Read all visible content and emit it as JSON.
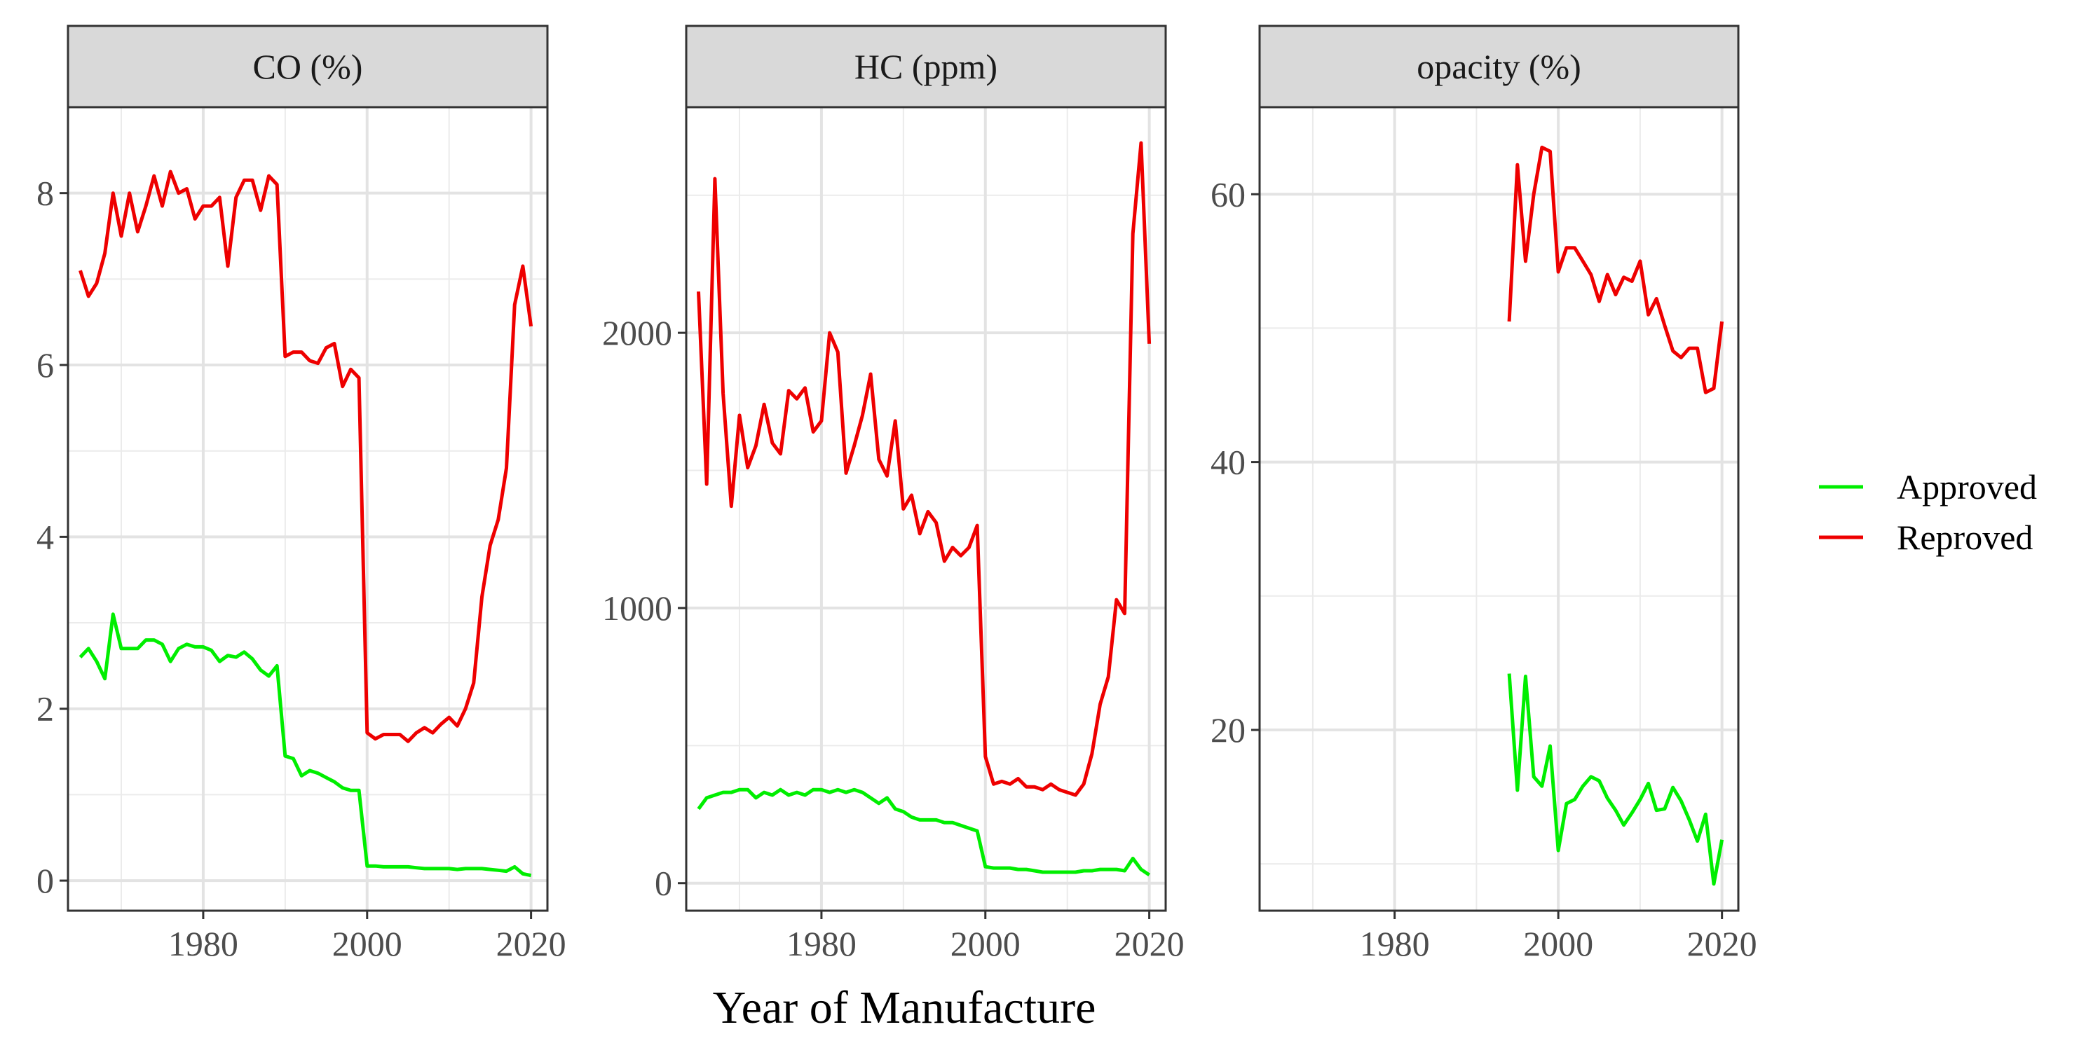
{
  "chart_data": {
    "type": "line",
    "xlabel": "Year of Manufacture",
    "x_ticks": [
      1980,
      2000,
      2020
    ],
    "xlim": [
      1963.5,
      2022
    ],
    "legend": {
      "placement": "right",
      "entries": [
        {
          "name": "Approved",
          "color": "#00ee00"
        },
        {
          "name": "Reproved",
          "color": "#ee0000"
        }
      ]
    },
    "panels": [
      {
        "title": "CO (%)",
        "ylim": [
          -0.35,
          9.0
        ],
        "y_ticks": [
          0,
          2,
          4,
          6,
          8
        ],
        "y_minor": [
          1,
          3,
          5,
          7
        ],
        "series": [
          {
            "name": "Approved",
            "x": [
              1965,
              1966,
              1967,
              1968,
              1969,
              1970,
              1971,
              1972,
              1973,
              1974,
              1975,
              1976,
              1977,
              1978,
              1979,
              1980,
              1981,
              1982,
              1983,
              1984,
              1985,
              1986,
              1987,
              1988,
              1989,
              1990,
              1991,
              1992,
              1993,
              1994,
              1995,
              1996,
              1997,
              1998,
              1999,
              2000,
              2001,
              2002,
              2003,
              2004,
              2005,
              2006,
              2007,
              2008,
              2009,
              2010,
              2011,
              2012,
              2013,
              2014,
              2015,
              2016,
              2017,
              2018,
              2019,
              2020
            ],
            "y": [
              2.6,
              2.7,
              2.55,
              2.35,
              3.1,
              2.7,
              2.7,
              2.7,
              2.8,
              2.8,
              2.75,
              2.55,
              2.7,
              2.75,
              2.72,
              2.72,
              2.68,
              2.55,
              2.62,
              2.6,
              2.66,
              2.58,
              2.45,
              2.38,
              2.5,
              1.45,
              1.42,
              1.22,
              1.28,
              1.25,
              1.2,
              1.15,
              1.08,
              1.05,
              1.05,
              0.17,
              0.17,
              0.16,
              0.16,
              0.16,
              0.16,
              0.15,
              0.14,
              0.14,
              0.14,
              0.14,
              0.13,
              0.14,
              0.14,
              0.14,
              0.13,
              0.12,
              0.11,
              0.16,
              0.08,
              0.06
            ]
          },
          {
            "name": "Reproved",
            "x": [
              1965,
              1966,
              1967,
              1968,
              1969,
              1970,
              1971,
              1972,
              1973,
              1974,
              1975,
              1976,
              1977,
              1978,
              1979,
              1980,
              1981,
              1982,
              1983,
              1984,
              1985,
              1986,
              1987,
              1988,
              1989,
              1990,
              1991,
              1992,
              1993,
              1994,
              1995,
              1996,
              1997,
              1998,
              1999,
              2000,
              2001,
              2002,
              2003,
              2004,
              2005,
              2006,
              2007,
              2008,
              2009,
              2010,
              2011,
              2012,
              2013,
              2014,
              2015,
              2016,
              2017,
              2018,
              2019,
              2020
            ],
            "y": [
              7.1,
              6.8,
              6.95,
              7.3,
              8.0,
              7.5,
              8.0,
              7.55,
              7.85,
              8.2,
              7.85,
              8.25,
              8.0,
              8.05,
              7.7,
              7.85,
              7.85,
              7.95,
              7.15,
              7.95,
              8.15,
              8.15,
              7.8,
              8.2,
              8.1,
              6.1,
              6.15,
              6.15,
              6.05,
              6.02,
              6.2,
              6.25,
              5.75,
              5.95,
              5.85,
              1.72,
              1.65,
              1.7,
              1.7,
              1.7,
              1.62,
              1.72,
              1.78,
              1.72,
              1.82,
              1.9,
              1.8,
              2.0,
              2.3,
              3.3,
              3.9,
              4.2,
              4.8,
              6.7,
              7.15,
              6.45
            ]
          }
        ]
      },
      {
        "title": "HC (ppm)",
        "ylim": [
          -100,
          2820
        ],
        "y_ticks": [
          0,
          1000,
          2000
        ],
        "y_minor": [
          500,
          1500,
          2500
        ],
        "series": [
          {
            "name": "Approved",
            "x": [
              1965,
              1966,
              1967,
              1968,
              1969,
              1970,
              1971,
              1972,
              1973,
              1974,
              1975,
              1976,
              1977,
              1978,
              1979,
              1980,
              1981,
              1982,
              1983,
              1984,
              1985,
              1986,
              1987,
              1988,
              1989,
              1990,
              1991,
              1992,
              1993,
              1994,
              1995,
              1996,
              1997,
              1998,
              1999,
              2000,
              2001,
              2002,
              2003,
              2004,
              2005,
              2006,
              2007,
              2008,
              2009,
              2010,
              2011,
              2012,
              2013,
              2014,
              2015,
              2016,
              2017,
              2018,
              2019,
              2020
            ],
            "y": [
              270,
              310,
              320,
              330,
              330,
              340,
              340,
              310,
              330,
              320,
              340,
              320,
              330,
              320,
              340,
              340,
              330,
              340,
              330,
              340,
              330,
              310,
              290,
              310,
              270,
              260,
              240,
              230,
              230,
              230,
              220,
              220,
              210,
              200,
              190,
              60,
              55,
              55,
              55,
              50,
              50,
              45,
              40,
              40,
              40,
              40,
              40,
              45,
              45,
              50,
              50,
              50,
              45,
              90,
              50,
              30
            ]
          },
          {
            "name": "Reproved",
            "x": [
              1965,
              1966,
              1967,
              1968,
              1969,
              1970,
              1971,
              1972,
              1973,
              1974,
              1975,
              1976,
              1977,
              1978,
              1979,
              1980,
              1981,
              1982,
              1983,
              1984,
              1985,
              1986,
              1987,
              1988,
              1989,
              1990,
              1991,
              1992,
              1993,
              1994,
              1995,
              1996,
              1997,
              1998,
              1999,
              2000,
              2001,
              2002,
              2003,
              2004,
              2005,
              2006,
              2007,
              2008,
              2009,
              2010,
              2011,
              2012,
              2013,
              2014,
              2015,
              2016,
              2017,
              2018,
              2019,
              2020
            ],
            "y": [
              2150,
              1450,
              2560,
              1780,
              1370,
              1700,
              1510,
              1590,
              1740,
              1600,
              1560,
              1790,
              1760,
              1800,
              1640,
              1680,
              2000,
              1930,
              1490,
              1590,
              1700,
              1850,
              1540,
              1480,
              1680,
              1360,
              1410,
              1270,
              1350,
              1310,
              1170,
              1220,
              1190,
              1220,
              1300,
              460,
              360,
              370,
              360,
              380,
              350,
              350,
              340,
              360,
              340,
              330,
              320,
              360,
              470,
              650,
              750,
              1030,
              980,
              2360,
              2690,
              1960
            ]
          }
        ]
      },
      {
        "title": "opacity (%)",
        "ylim": [
          6.5,
          66.5
        ],
        "y_ticks": [
          20,
          40,
          60
        ],
        "y_minor": [
          10,
          30,
          50
        ],
        "series": [
          {
            "name": "Approved",
            "x": [
              1994,
              1995,
              1996,
              1997,
              1998,
              1999,
              2000,
              2001,
              2002,
              2003,
              2004,
              2005,
              2006,
              2007,
              2008,
              2009,
              2010,
              2011,
              2012,
              2013,
              2014,
              2015,
              2016,
              2017,
              2018,
              2019,
              2020
            ],
            "y": [
              24.2,
              15.5,
              24.0,
              16.5,
              15.8,
              18.8,
              11.0,
              14.5,
              14.8,
              15.8,
              16.5,
              16.2,
              14.9,
              14.0,
              12.9,
              13.8,
              14.8,
              16.0,
              14.0,
              14.1,
              15.7,
              14.7,
              13.3,
              11.7,
              13.7,
              8.5,
              11.8
            ]
          },
          {
            "name": "Reproved",
            "x": [
              1994,
              1995,
              1996,
              1997,
              1998,
              1999,
              2000,
              2001,
              2002,
              2003,
              2004,
              2005,
              2006,
              2007,
              2008,
              2009,
              2010,
              2011,
              2012,
              2013,
              2014,
              2015,
              2016,
              2017,
              2018,
              2019,
              2020
            ],
            "y": [
              50.5,
              62.2,
              55.0,
              60.0,
              63.5,
              63.2,
              54.2,
              56.0,
              56.0,
              55.0,
              54.0,
              52.0,
              54.0,
              52.5,
              53.8,
              53.5,
              55.0,
              51.0,
              52.2,
              50.2,
              48.3,
              47.8,
              48.5,
              48.5,
              45.2,
              45.5,
              50.5
            ]
          }
        ]
      }
    ]
  }
}
